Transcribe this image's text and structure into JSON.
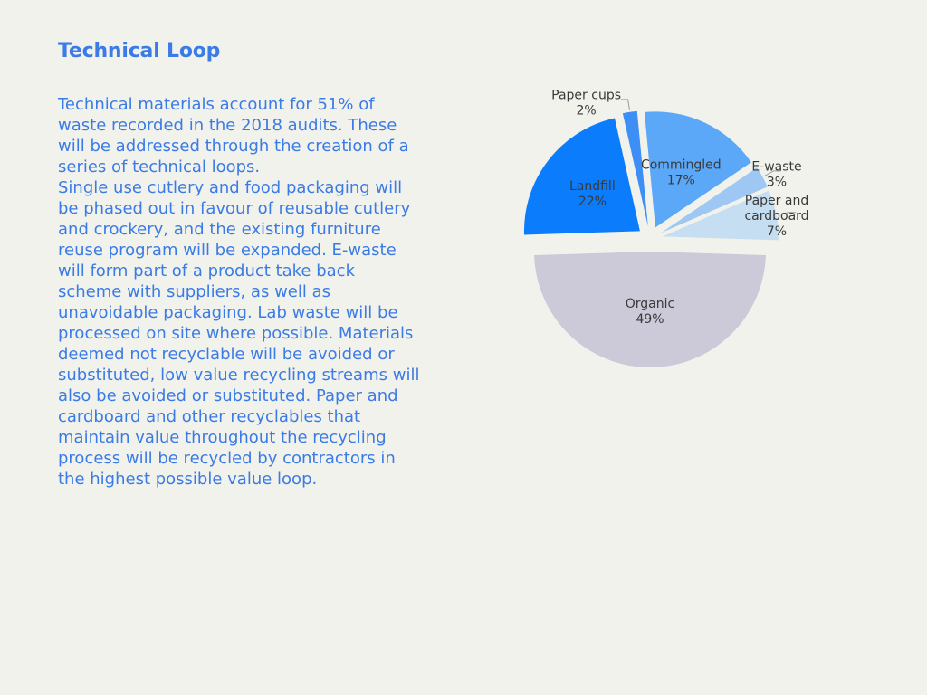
{
  "title": "Technical Loop",
  "body": {
    "paragraph_1": "Technical materials account for 51% of waste recorded in the 2018 audits. These will be addressed through the creation of a series of technical loops.",
    "paragraph_2": "Single use cutlery and food packaging will be phased out in favour of reusable cutlery and crockery, and the existing furniture reuse program will be expanded. E-waste will form part of a product take back scheme with suppliers, as well as unavoidable packaging. Lab waste will be processed on site where possible. Materials deemed not recyclable will be avoided or substituted, low value recycling streams will also be avoided or substituted. Paper and cardboard and other recyclables that maintain value throughout the recycling process will be recycled by contractors in the highest possible value loop."
  },
  "colors": {
    "title_text": "#3b7be6",
    "body_text": "#3b7be6",
    "background": "#f1f2ec"
  },
  "chart_data": {
    "type": "pie",
    "slices": [
      {
        "label": "Organic",
        "display": [
          "Organic"
        ],
        "value": 49,
        "value_label": "49%",
        "color": "#ccc9d8",
        "label_position": "inside",
        "exploded": true
      },
      {
        "label": "Landfill",
        "display": [
          "Landfill"
        ],
        "value": 22,
        "value_label": "22%",
        "color": "#0a7cfc",
        "label_position": "inside",
        "exploded": true
      },
      {
        "label": "Paper cups",
        "display": [
          "Paper cups"
        ],
        "value": 2,
        "value_label": "2%",
        "color": "#3d8ff6",
        "label_position": "outside",
        "exploded": true
      },
      {
        "label": "Commingled",
        "display": [
          "Commingled"
        ],
        "value": 17,
        "value_label": "17%",
        "color": "#5ba8f8",
        "label_position": "inside",
        "exploded": true
      },
      {
        "label": "E-waste",
        "display": [
          "E-waste"
        ],
        "value": 3,
        "value_label": "3%",
        "color": "#9ec7f4",
        "label_position": "outside",
        "exploded": true
      },
      {
        "label": "Paper and cardboard",
        "display": [
          "Paper and",
          "cardboard"
        ],
        "value": 7,
        "value_label": "7%",
        "color": "#c6def2",
        "label_position": "outside",
        "exploded": true
      }
    ]
  }
}
